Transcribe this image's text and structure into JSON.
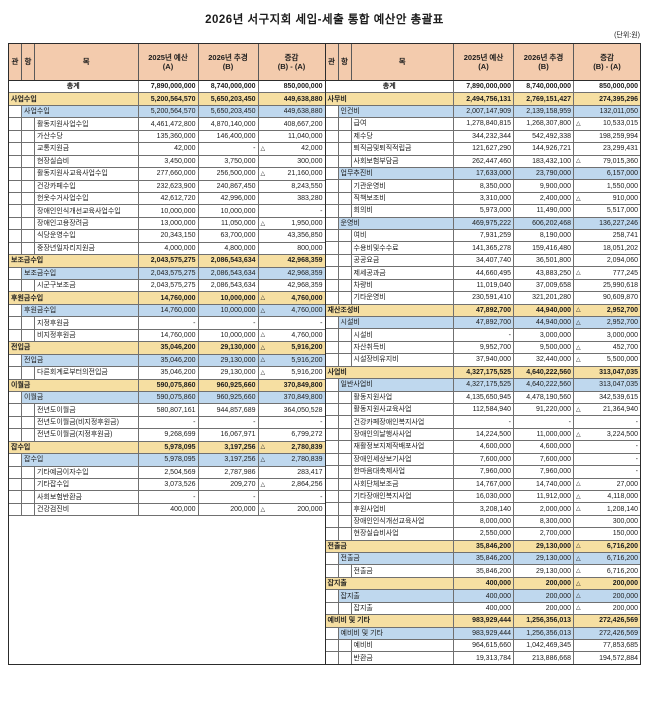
{
  "title": "2026년 서구지회 세입-세출 통합 예산안 총괄표",
  "unit_note": "(단위:원)",
  "colors": {
    "header_bg": "#F3CBAD",
    "section_row_bg": "#F6DFA2",
    "subsection_row_bg": "#BFD8EE",
    "outer_border": "#2c2c2c",
    "grid_border": "#707070"
  },
  "header": {
    "gwan": "관",
    "hang": "항",
    "mok": "목",
    "col_a": "2025년 예산",
    "col_a_sub": "(A)",
    "col_b": "2026년 추경",
    "col_b_sub": "(B)",
    "col_d": "증감",
    "col_d_sub": "(B) - (A)"
  },
  "decrease_mark": "△",
  "revenue_rows": [
    {
      "t": "total",
      "l": "총계",
      "a": "7,890,000,000",
      "b": "8,740,000,000",
      "d": "850,000,000"
    },
    {
      "t": "g",
      "l": "사업수입",
      "a": "5,200,564,570",
      "b": "5,650,203,450",
      "d": "449,638,880"
    },
    {
      "t": "h",
      "l": "사업수입",
      "a": "5,200,564,570",
      "b": "5,650,203,450",
      "d": "449,638,880"
    },
    {
      "t": "m",
      "l": "활동지원사업수입",
      "a": "4,461,472,800",
      "b": "4,870,140,000",
      "d": "408,667,200"
    },
    {
      "t": "m",
      "l": "가산수당",
      "a": "135,360,000",
      "b": "146,400,000",
      "d": "11,040,000"
    },
    {
      "t": "m",
      "l": "교통지원금",
      "a": "42,000",
      "b": "-",
      "d": "42,000",
      "n": true
    },
    {
      "t": "m",
      "l": "현장실습비",
      "a": "3,450,000",
      "b": "3,750,000",
      "d": "300,000"
    },
    {
      "t": "m",
      "l": "활동지원사교육사업수입",
      "a": "277,660,000",
      "b": "256,500,000",
      "d": "21,160,000",
      "n": true
    },
    {
      "t": "m",
      "l": "건강카페수입",
      "a": "232,623,900",
      "b": "240,867,450",
      "d": "8,243,550"
    },
    {
      "t": "m",
      "l": "헌옷수거사업수입",
      "a": "42,612,720",
      "b": "42,996,000",
      "d": "383,280"
    },
    {
      "t": "m",
      "l": "장애인인식개선교육사업수입",
      "a": "10,000,000",
      "b": "10,000,000",
      "d": "-"
    },
    {
      "t": "m",
      "l": "장애인고용장려금",
      "a": "13,000,000",
      "b": "11,050,000",
      "d": "1,950,000",
      "n": true
    },
    {
      "t": "m",
      "l": "식당운영수입",
      "a": "20,343,150",
      "b": "63,700,000",
      "d": "43,356,850"
    },
    {
      "t": "m",
      "l": "중장년일자리지원금",
      "a": "4,000,000",
      "b": "4,800,000",
      "d": "800,000"
    },
    {
      "t": "g",
      "l": "보조금수입",
      "a": "2,043,575,275",
      "b": "2,086,543,634",
      "d": "42,968,359"
    },
    {
      "t": "h",
      "l": "보조금수입",
      "a": "2,043,575,275",
      "b": "2,086,543,634",
      "d": "42,968,359"
    },
    {
      "t": "m",
      "l": "시군구보조금",
      "a": "2,043,575,275",
      "b": "2,086,543,634",
      "d": "42,968,359"
    },
    {
      "t": "g",
      "l": "후원금수입",
      "a": "14,760,000",
      "b": "10,000,000",
      "d": "4,760,000",
      "n": true
    },
    {
      "t": "h",
      "l": "후원금수입",
      "a": "14,760,000",
      "b": "10,000,000",
      "d": "4,760,000",
      "n": true
    },
    {
      "t": "m",
      "l": "지정후원금",
      "a": "-",
      "b": "-",
      "d": "-"
    },
    {
      "t": "m",
      "l": "비지정후원금",
      "a": "14,760,000",
      "b": "10,000,000",
      "d": "4,760,000",
      "n": true
    },
    {
      "t": "g",
      "l": "전입금",
      "a": "35,046,200",
      "b": "29,130,000",
      "d": "5,916,200",
      "n": true
    },
    {
      "t": "h",
      "l": "전입금",
      "a": "35,046,200",
      "b": "29,130,000",
      "d": "5,916,200",
      "n": true
    },
    {
      "t": "m",
      "l": "다른회계로부터의전입금",
      "a": "35,046,200",
      "b": "29,130,000",
      "d": "5,916,200",
      "n": true
    },
    {
      "t": "g",
      "l": "이월금",
      "a": "590,075,860",
      "b": "960,925,660",
      "d": "370,849,800"
    },
    {
      "t": "h",
      "l": "이월금",
      "a": "590,075,860",
      "b": "960,925,660",
      "d": "370,849,800"
    },
    {
      "t": "m",
      "l": "전년도이월금",
      "a": "580,807,161",
      "b": "944,857,689",
      "d": "364,050,528"
    },
    {
      "t": "m",
      "l": "전년도이월금(비지정후원금)",
      "a": "-",
      "b": "-",
      "d": "-"
    },
    {
      "t": "m",
      "l": "전년도이월금(지정후원금)",
      "a": "9,268,699",
      "b": "16,067,971",
      "d": "6,799,272"
    },
    {
      "t": "g",
      "l": "잡수입",
      "a": "5,978,095",
      "b": "3,197,256",
      "d": "2,780,839",
      "n": true
    },
    {
      "t": "h",
      "l": "잡수입",
      "a": "5,978,095",
      "b": "3,197,256",
      "d": "2,780,839",
      "n": true
    },
    {
      "t": "m",
      "l": "기타예금이자수입",
      "a": "2,504,569",
      "b": "2,787,986",
      "d": "283,417"
    },
    {
      "t": "m",
      "l": "기타잡수입",
      "a": "3,073,526",
      "b": "209,270",
      "d": "2,864,256",
      "n": true
    },
    {
      "t": "m",
      "l": "사회보험반환금",
      "a": "-",
      "b": "-",
      "d": "-"
    },
    {
      "t": "m",
      "l": "건강검진비",
      "a": "400,000",
      "b": "200,000",
      "d": "200,000",
      "n": true
    }
  ],
  "expenditure_rows": [
    {
      "t": "total",
      "l": "총계",
      "a": "7,890,000,000",
      "b": "8,740,000,000",
      "d": "850,000,000"
    },
    {
      "t": "g",
      "l": "사무비",
      "a": "2,494,756,131",
      "b": "2,769,151,427",
      "d": "274,395,296"
    },
    {
      "t": "h",
      "l": "인건비",
      "a": "2,007,147,909",
      "b": "2,139,158,959",
      "d": "132,011,050"
    },
    {
      "t": "m",
      "l": "급여",
      "a": "1,278,840,815",
      "b": "1,268,307,800",
      "d": "10,533,015",
      "n": true
    },
    {
      "t": "m",
      "l": "제수당",
      "a": "344,232,344",
      "b": "542,492,338",
      "d": "198,259,994"
    },
    {
      "t": "m",
      "l": "퇴직금및퇴직적립금",
      "a": "121,627,290",
      "b": "144,926,721",
      "d": "23,299,431"
    },
    {
      "t": "m",
      "l": "사회보험부담금",
      "a": "262,447,460",
      "b": "183,432,100",
      "d": "79,015,360",
      "n": true
    },
    {
      "t": "h",
      "l": "업무추진비",
      "a": "17,633,000",
      "b": "23,790,000",
      "d": "6,157,000"
    },
    {
      "t": "m",
      "l": "기관운영비",
      "a": "8,350,000",
      "b": "9,900,000",
      "d": "1,550,000"
    },
    {
      "t": "m",
      "l": "직책보조비",
      "a": "3,310,000",
      "b": "2,400,000",
      "d": "910,000",
      "n": true
    },
    {
      "t": "m",
      "l": "회의비",
      "a": "5,973,000",
      "b": "11,490,000",
      "d": "5,517,000"
    },
    {
      "t": "h",
      "l": "운영비",
      "a": "469,975,222",
      "b": "606,202,468",
      "d": "136,227,246"
    },
    {
      "t": "m",
      "l": "여비",
      "a": "7,931,259",
      "b": "8,190,000",
      "d": "258,741"
    },
    {
      "t": "m",
      "l": "수용비및수수료",
      "a": "141,365,278",
      "b": "159,416,480",
      "d": "18,051,202"
    },
    {
      "t": "m",
      "l": "공공요금",
      "a": "34,407,740",
      "b": "36,501,800",
      "d": "2,094,060"
    },
    {
      "t": "m",
      "l": "제세공과금",
      "a": "44,660,495",
      "b": "43,883,250",
      "d": "777,245",
      "n": true
    },
    {
      "t": "m",
      "l": "차량비",
      "a": "11,019,040",
      "b": "37,009,658",
      "d": "25,990,618"
    },
    {
      "t": "m",
      "l": "기타운영비",
      "a": "230,591,410",
      "b": "321,201,280",
      "d": "90,609,870"
    },
    {
      "t": "g",
      "l": "재산조성비",
      "a": "47,892,700",
      "b": "44,940,000",
      "d": "2,952,700",
      "n": true
    },
    {
      "t": "h",
      "l": "시설비",
      "a": "47,892,700",
      "b": "44,940,000",
      "d": "2,952,700",
      "n": true
    },
    {
      "t": "m",
      "l": "시설비",
      "a": "-",
      "b": "3,000,000",
      "d": "3,000,000"
    },
    {
      "t": "m",
      "l": "자산취득비",
      "a": "9,952,700",
      "b": "9,500,000",
      "d": "452,700",
      "n": true
    },
    {
      "t": "m",
      "l": "시설장비유지비",
      "a": "37,940,000",
      "b": "32,440,000",
      "d": "5,500,000",
      "n": true
    },
    {
      "t": "g",
      "l": "사업비",
      "a": "4,327,175,525",
      "b": "4,640,222,560",
      "d": "313,047,035"
    },
    {
      "t": "h",
      "l": "일반사업비",
      "a": "4,327,175,525",
      "b": "4,640,222,560",
      "d": "313,047,035"
    },
    {
      "t": "m",
      "l": "활동지원사업",
      "a": "4,135,650,945",
      "b": "4,478,190,560",
      "d": "342,539,615"
    },
    {
      "t": "m",
      "l": "활동지원사교육사업",
      "a": "112,584,940",
      "b": "91,220,000",
      "d": "21,364,940",
      "n": true
    },
    {
      "t": "m",
      "l": "건강카페장애인복지사업",
      "a": "-",
      "b": "-",
      "d": "-"
    },
    {
      "t": "m",
      "l": "장애인의날행사사업",
      "a": "14,224,500",
      "b": "11,000,000",
      "d": "3,224,500",
      "n": true
    },
    {
      "t": "m",
      "l": "재활정보지제작배포사업",
      "a": "4,600,000",
      "b": "4,600,000",
      "d": "-"
    },
    {
      "t": "m",
      "l": "장애인세상보기사업",
      "a": "7,600,000",
      "b": "7,600,000",
      "d": "-"
    },
    {
      "t": "m",
      "l": "한마음대축제사업",
      "a": "7,960,000",
      "b": "7,960,000",
      "d": "-"
    },
    {
      "t": "m",
      "l": "사회단체보조금",
      "a": "14,767,000",
      "b": "14,740,000",
      "d": "27,000",
      "n": true
    },
    {
      "t": "m",
      "l": "기타장애인복지사업",
      "a": "16,030,000",
      "b": "11,912,000",
      "d": "4,118,000",
      "n": true
    },
    {
      "t": "m",
      "l": "후원사업비",
      "a": "3,208,140",
      "b": "2,000,000",
      "d": "1,208,140",
      "n": true
    },
    {
      "t": "m",
      "l": "장애인인식개선교육사업",
      "a": "8,000,000",
      "b": "8,300,000",
      "d": "300,000"
    },
    {
      "t": "m",
      "l": "현장실습비사업",
      "a": "2,550,000",
      "b": "2,700,000",
      "d": "150,000"
    },
    {
      "t": "g",
      "l": "전출금",
      "a": "35,846,200",
      "b": "29,130,000",
      "d": "6,716,200",
      "n": true
    },
    {
      "t": "h",
      "l": "전출금",
      "a": "35,846,200",
      "b": "29,130,000",
      "d": "6,716,200",
      "n": true
    },
    {
      "t": "m",
      "l": "전출금",
      "a": "35,846,200",
      "b": "29,130,000",
      "d": "6,716,200",
      "n": true
    },
    {
      "t": "g",
      "l": "잡지출",
      "a": "400,000",
      "b": "200,000",
      "d": "200,000",
      "n": true
    },
    {
      "t": "h",
      "l": "잡지출",
      "a": "400,000",
      "b": "200,000",
      "d": "200,000",
      "n": true
    },
    {
      "t": "m",
      "l": "잡지출",
      "a": "400,000",
      "b": "200,000",
      "d": "200,000",
      "n": true
    },
    {
      "t": "g",
      "l": "예비비 및 기타",
      "a": "983,929,444",
      "b": "1,256,356,013",
      "d": "272,426,569"
    },
    {
      "t": "h",
      "l": "예비비 및 기타",
      "a": "983,929,444",
      "b": "1,256,356,013",
      "d": "272,426,569"
    },
    {
      "t": "m",
      "l": "예비비",
      "a": "964,615,660",
      "b": "1,042,469,345",
      "d": "77,853,685"
    },
    {
      "t": "m",
      "l": "반환금",
      "a": "19,313,784",
      "b": "213,886,668",
      "d": "194,572,884"
    }
  ]
}
